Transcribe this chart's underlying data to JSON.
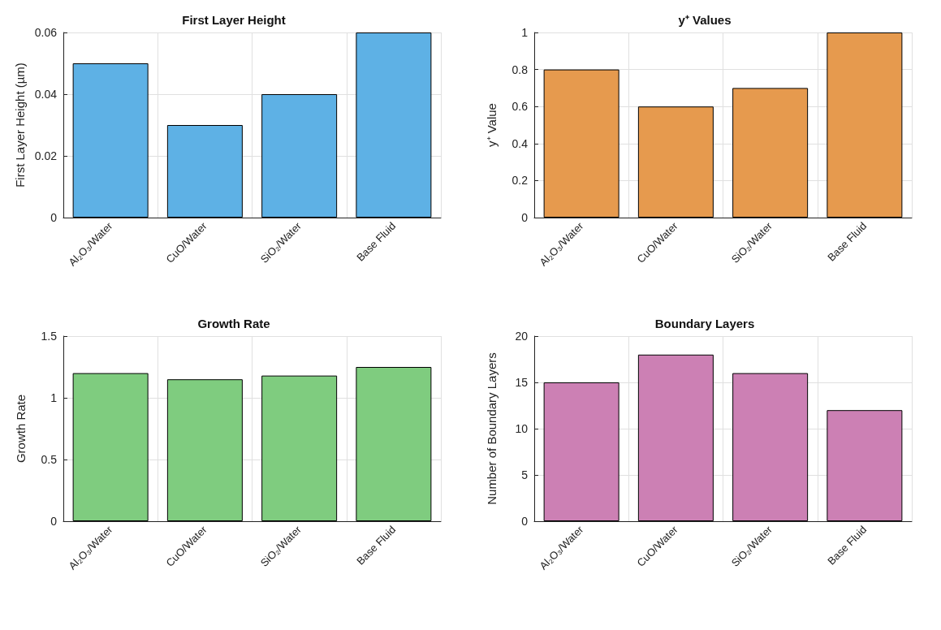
{
  "chart_data": [
    {
      "type": "bar",
      "title": "First Layer Height",
      "ylabel": "First Layer Height (µm)",
      "categories": [
        "Al₂O₃/Water",
        "CuO/Water",
        "SiO₂/Water",
        "Base Fluid"
      ],
      "values": [
        0.05,
        0.03,
        0.04,
        0.06
      ],
      "color": "#5eb1e5",
      "ylim": [
        0,
        0.06
      ],
      "yticks": [
        0,
        0.02,
        0.04,
        0.06
      ],
      "grid": true
    },
    {
      "type": "bar",
      "title": "y⁺ Values",
      "ylabel": "y⁺ Value",
      "categories": [
        "Al₂O₃/Water",
        "CuO/Water",
        "SiO₂/Water",
        "Base Fluid"
      ],
      "values": [
        0.8,
        0.6,
        0.7,
        1.0
      ],
      "color": "#e69a4e",
      "ylim": [
        0,
        1
      ],
      "yticks": [
        0,
        0.2,
        0.4,
        0.6,
        0.8,
        1
      ],
      "grid": true
    },
    {
      "type": "bar",
      "title": "Growth Rate",
      "ylabel": "Growth Rate",
      "categories": [
        "Al₂O₃/Water",
        "CuO/Water",
        "SiO₂/Water",
        "Base Fluid"
      ],
      "values": [
        1.2,
        1.15,
        1.18,
        1.25
      ],
      "color": "#7fcc7f",
      "ylim": [
        0,
        1.5
      ],
      "yticks": [
        0,
        0.5,
        1,
        1.5
      ],
      "grid": true
    },
    {
      "type": "bar",
      "title": "Boundary Layers",
      "ylabel": "Number of Boundary Layers",
      "categories": [
        "Al₂O₃/Water",
        "CuO/Water",
        "SiO₂/Water",
        "Base Fluid"
      ],
      "values": [
        15,
        18,
        16,
        12
      ],
      "color": "#cc80b4",
      "ylim": [
        0,
        20
      ],
      "yticks": [
        0,
        5,
        10,
        15,
        20
      ],
      "grid": true
    }
  ]
}
